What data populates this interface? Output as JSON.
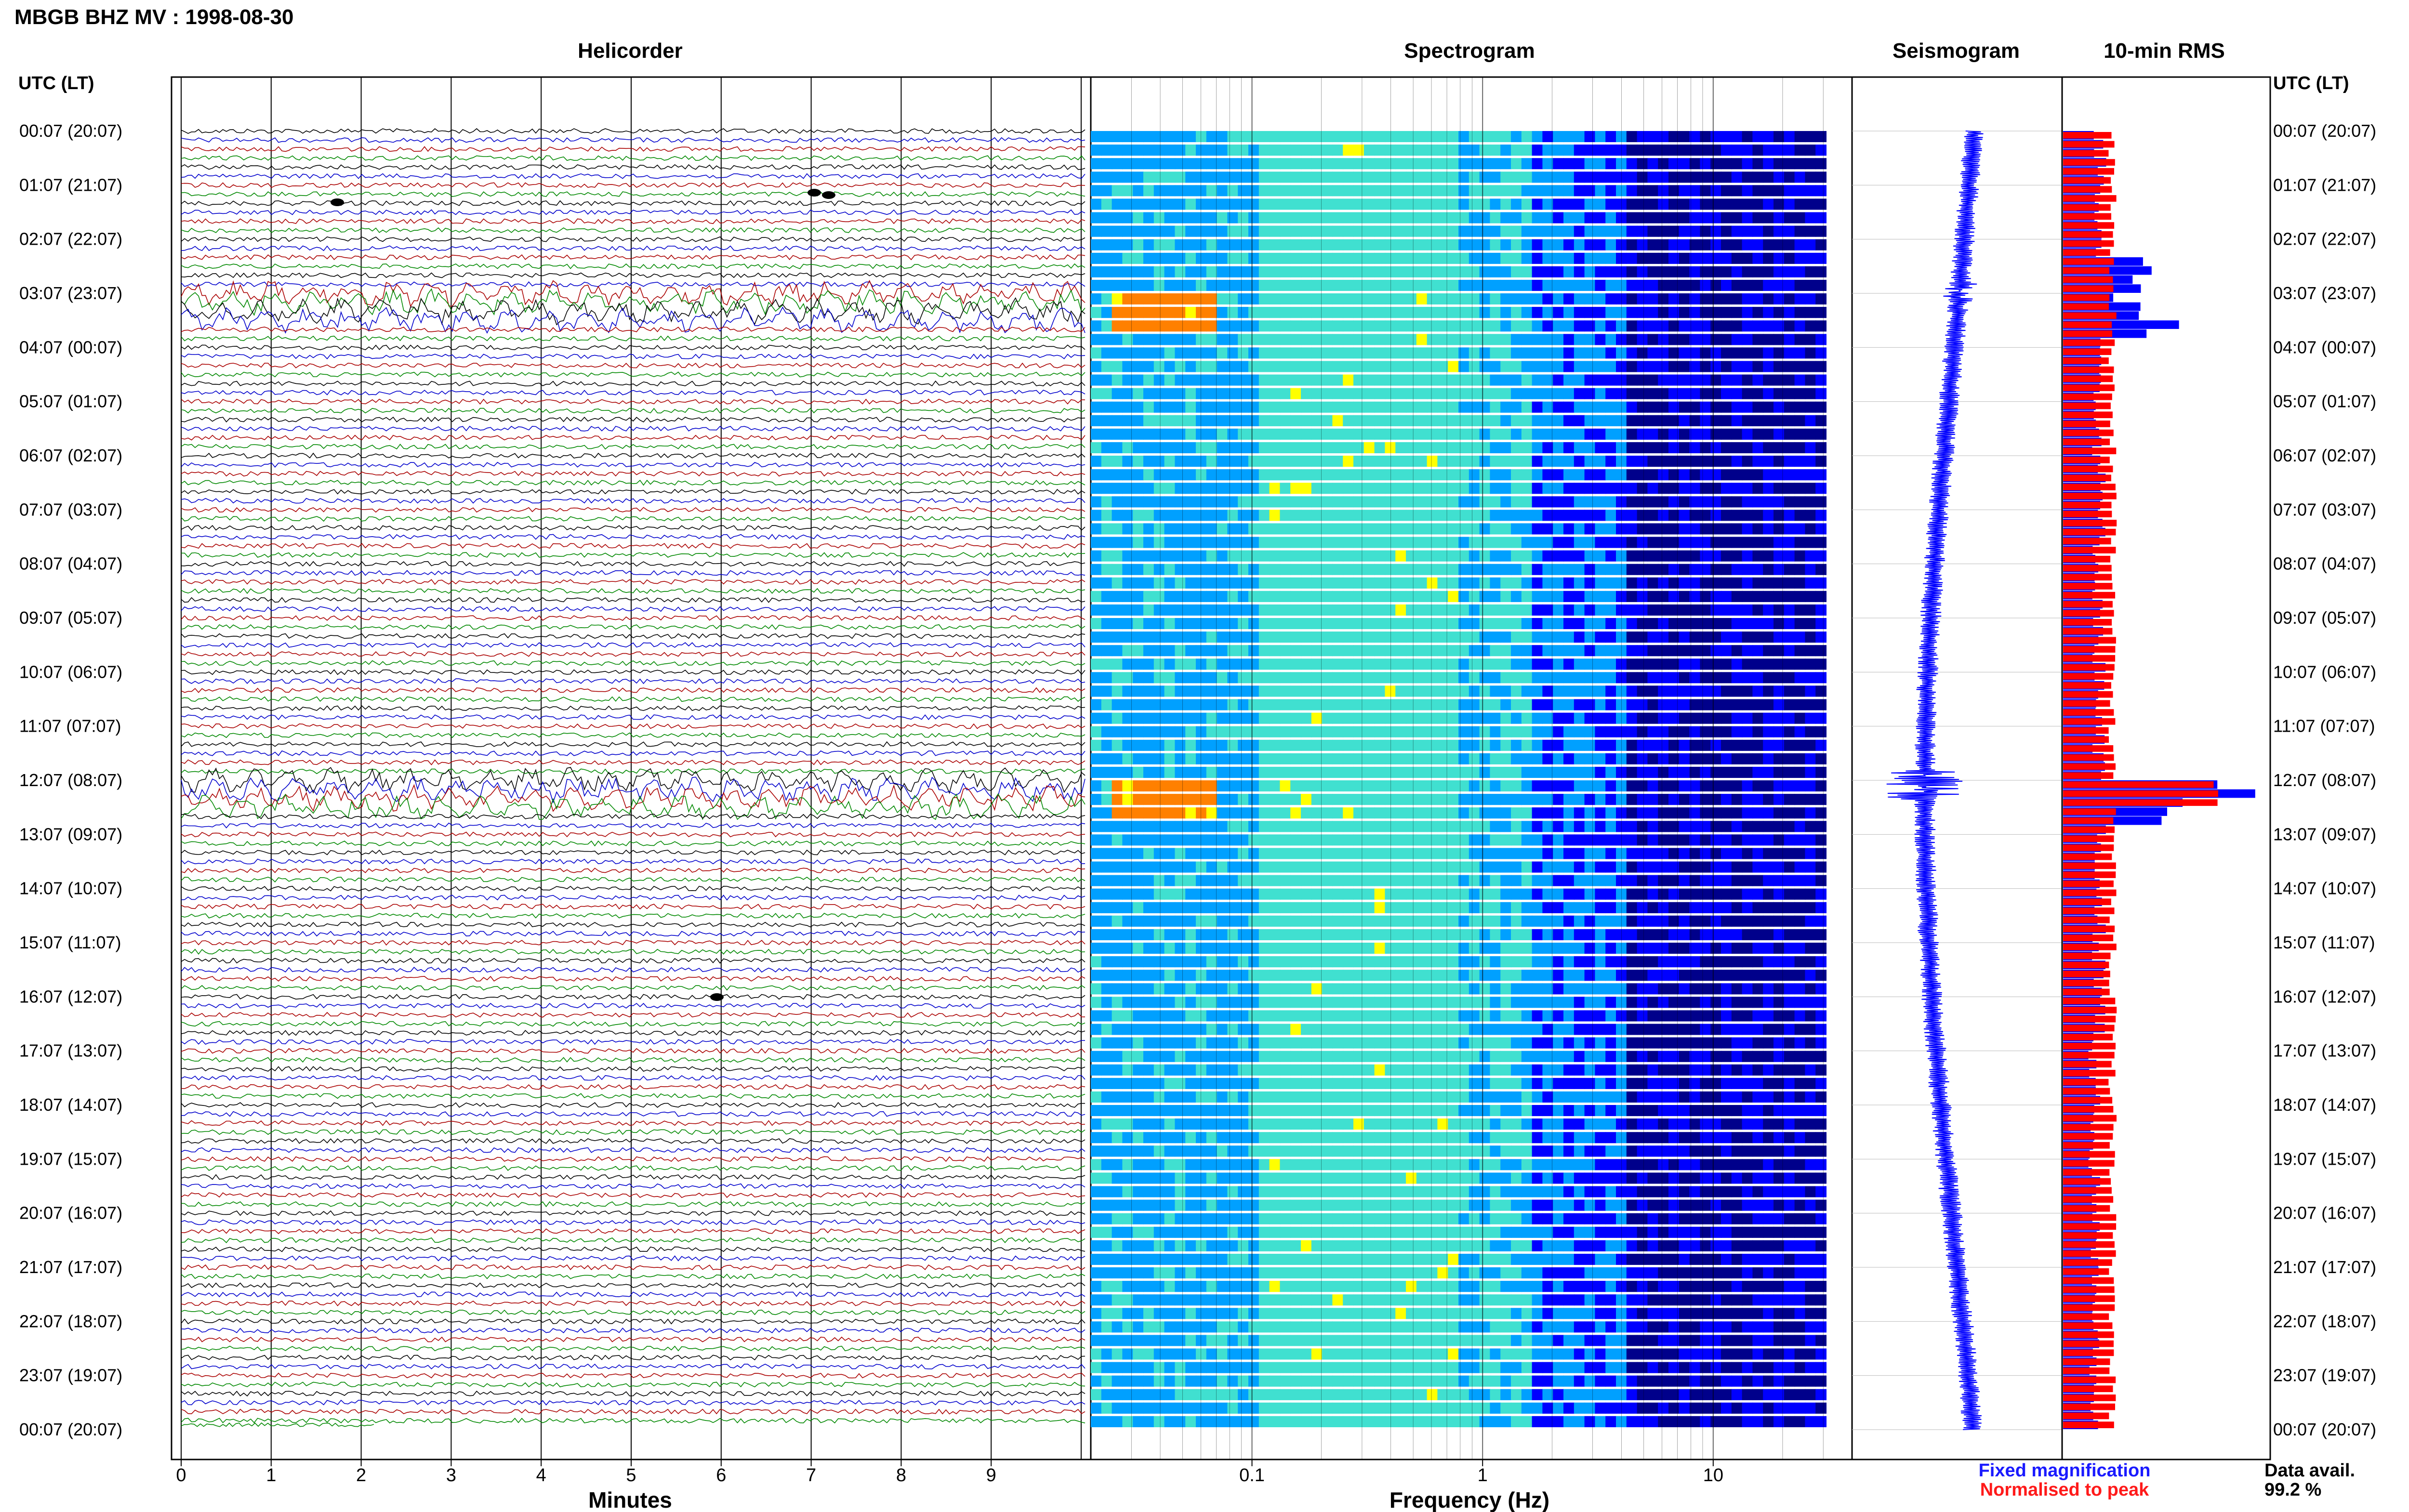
{
  "header": {
    "title": "MBGB BHZ MV : 1998-08-30"
  },
  "panels": {
    "helicorder": "Helicorder",
    "spectrogram": "Spectrogram",
    "seismogram": "Seismogram",
    "rms": "10-min RMS"
  },
  "time_axis": {
    "label_left": "UTC (LT)",
    "label_right": "UTC (LT)",
    "hour_labels": [
      "00:07 (20:07)",
      "01:07 (21:07)",
      "02:07 (22:07)",
      "03:07 (23:07)",
      "04:07 (00:07)",
      "05:07 (01:07)",
      "06:07 (02:07)",
      "07:07 (03:07)",
      "08:07 (04:07)",
      "09:07 (05:07)",
      "10:07 (06:07)",
      "11:07 (07:07)",
      "12:07 (08:07)",
      "13:07 (09:07)",
      "14:07 (10:07)",
      "15:07 (11:07)",
      "16:07 (12:07)",
      "17:07 (13:07)",
      "18:07 (14:07)",
      "19:07 (15:07)",
      "20:07 (16:07)",
      "21:07 (17:07)",
      "22:07 (18:07)",
      "23:07 (19:07)",
      "00:07 (20:07)"
    ]
  },
  "chart_data": [
    {
      "type": "line",
      "title": "Helicorder",
      "xlabel": "Minutes",
      "x_ticks": [
        "0",
        "1",
        "2",
        "3",
        "4",
        "5",
        "6",
        "7",
        "8",
        "9"
      ],
      "xlim": [
        0,
        10
      ],
      "lines_per_hour": 6,
      "trace_colors": [
        "#000000",
        "#0000cc",
        "#aa0000",
        "#008800"
      ],
      "notable_events_utc": [
        "03:07",
        "12:07"
      ]
    },
    {
      "type": "heatmap",
      "title": "Spectrogram",
      "xlabel": "Frequency (Hz)",
      "x_scale": "log",
      "x_ticks": [
        "0.1",
        "1",
        "10"
      ],
      "xlim": [
        0.02,
        40
      ],
      "colormap": [
        "#00008b",
        "#0000ff",
        "#00a0ff",
        "#40e0d0",
        "#ffff00",
        "#ff8000",
        "#ff0000"
      ]
    },
    {
      "type": "line",
      "title": "Seismogram",
      "color": "#0000ff",
      "legend": "Fixed magnification"
    },
    {
      "type": "bar",
      "title": "10-min RMS",
      "series": [
        {
          "name": "Fixed magnification",
          "color": "#0000ff"
        },
        {
          "name": "Normalised to peak",
          "color": "#ff0000"
        }
      ],
      "peaks_utc": [
        "03:07",
        "12:07"
      ]
    }
  ],
  "legend": {
    "fixed": "Fixed magnification",
    "normalised": "Normalised to peak"
  },
  "availability": {
    "label": "Data avail.",
    "value": "99.2 %"
  }
}
